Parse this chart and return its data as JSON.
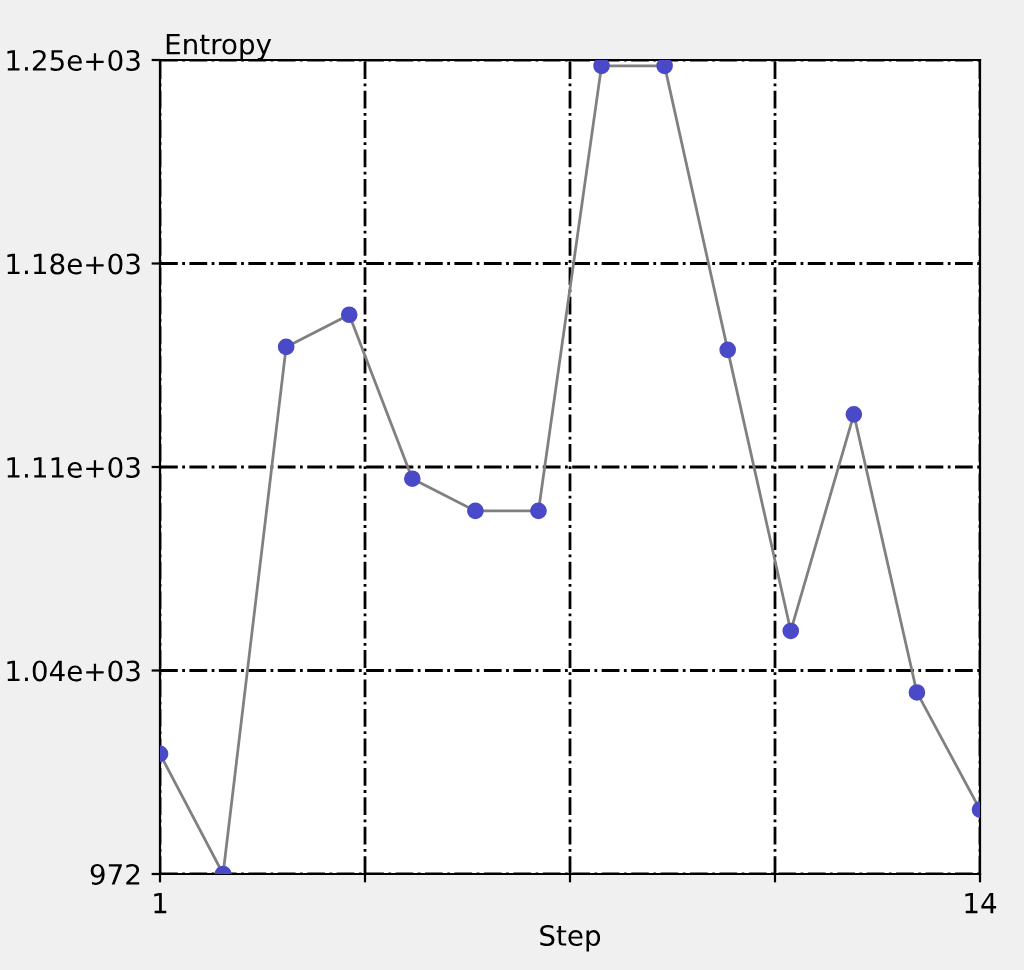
{
  "chart_data": {
    "type": "line",
    "xlabel": "Step",
    "ylabel": "Entropy",
    "x": [
      1,
      2,
      3,
      4,
      5,
      6,
      7,
      8,
      9,
      10,
      11,
      12,
      13,
      14
    ],
    "series": [
      {
        "color": "#4a4ac8",
        "values": [
          1013,
          972,
          1152,
          1163,
          1107,
          1096,
          1096,
          1248,
          1248,
          1151,
          1055,
          1129,
          1034,
          994
        ]
      }
    ],
    "marker": "circle",
    "line_style": "solid",
    "xlim": [
      1,
      14
    ],
    "xticks": [
      1,
      {
        "value": 4.25,
        "label": null
      },
      {
        "value": 7.5,
        "label": null
      },
      {
        "value": 10.75,
        "label": null
      },
      14
    ],
    "ylim": [
      972,
      1250
    ],
    "yticks": [
      {
        "value": 972,
        "label": "972"
      },
      {
        "value": 1041.5,
        "label": "1.04e+03"
      },
      {
        "value": 1111,
        "label": "1.11e+03"
      },
      {
        "value": 1180.5,
        "label": "1.18e+03"
      },
      {
        "value": 1250,
        "label": "1.25e+03"
      }
    ],
    "grid": true,
    "legend": false
  }
}
